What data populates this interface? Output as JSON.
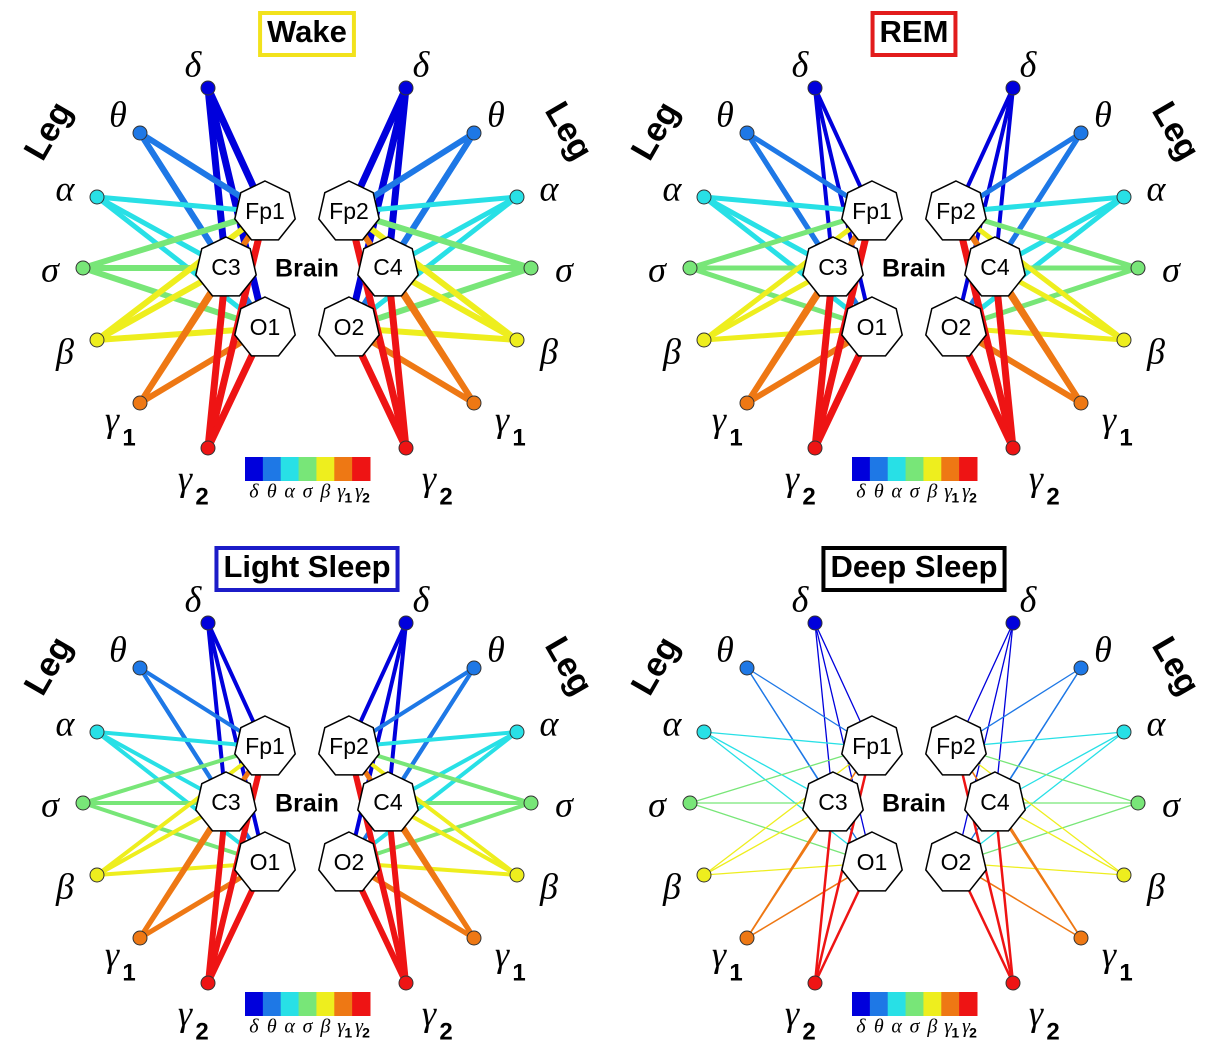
{
  "panels": [
    {
      "title": "Wake",
      "frame_color": "#f2e21c"
    },
    {
      "title": "REM",
      "frame_color": "#e21c1c"
    },
    {
      "title": "Light Sleep",
      "frame_color": "#1c1cc8"
    },
    {
      "title": "Deep Sleep",
      "frame_color": "#000000"
    }
  ],
  "bands": [
    {
      "symbol": "δ",
      "color": "#0000dc"
    },
    {
      "symbol": "θ",
      "color": "#1e78e6"
    },
    {
      "symbol": "α",
      "color": "#28e0e6"
    },
    {
      "symbol": "σ",
      "color": "#78e678"
    },
    {
      "symbol": "β",
      "color": "#eeee1e"
    },
    {
      "symbol": "γ",
      "sub": "1",
      "color": "#ee7814"
    },
    {
      "symbol": "γ",
      "sub": "2",
      "color": "#ee1414"
    }
  ],
  "left_nodes": [
    "Fp1",
    "C3",
    "O1"
  ],
  "right_nodes": [
    "Fp2",
    "C4",
    "O2"
  ],
  "center_label": "Brain",
  "limb_label": "Leg"
}
